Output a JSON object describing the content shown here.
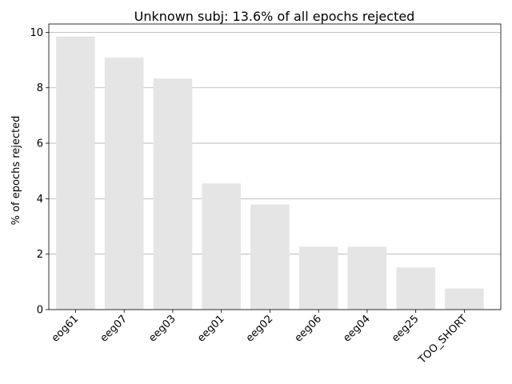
{
  "chart_data": {
    "type": "bar",
    "title": "Unknown subj: 13.6% of all epochs rejected",
    "xlabel": "",
    "ylabel": "% of epochs rejected",
    "categories": [
      "eog61",
      "eeg07",
      "eeg03",
      "eeg01",
      "eeg02",
      "eeg06",
      "eeg04",
      "eeg25",
      "TOO_SHORT"
    ],
    "values": [
      9.85,
      9.09,
      8.33,
      4.55,
      3.79,
      2.27,
      2.27,
      1.52,
      0.76
    ],
    "ylim": [
      0,
      10.3
    ],
    "yticks": [
      0,
      2,
      4,
      6,
      8,
      10
    ],
    "grid": "horizontal",
    "bar_color": "#e5e5e5",
    "grid_color": "#b0b0b0"
  }
}
